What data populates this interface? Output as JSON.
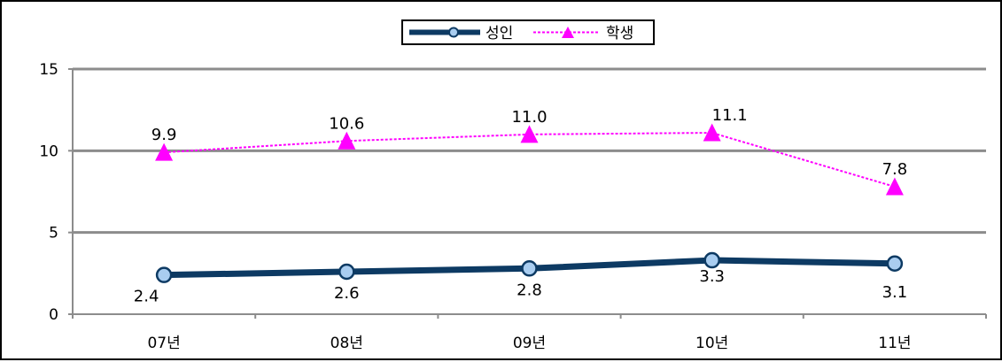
{
  "chart_data": {
    "type": "line",
    "categories": [
      "07년",
      "08년",
      "09년",
      "10년",
      "11년"
    ],
    "series": [
      {
        "name": "성인",
        "values": [
          2.4,
          2.6,
          2.8,
          3.3,
          3.1
        ],
        "labels": [
          "2.4",
          "2.6",
          "2.8",
          "3.3",
          "3.1"
        ],
        "color": "#0d3a63",
        "marker_color": "#a9cdf0",
        "line_style": "solid",
        "marker": "circle"
      },
      {
        "name": "학생",
        "values": [
          9.9,
          10.6,
          11.0,
          11.1,
          7.8
        ],
        "labels": [
          "9.9",
          "10.6",
          "11.0",
          "11.1",
          "7.8"
        ],
        "color": "#ff00ff",
        "marker_color": "#ff00ff",
        "line_style": "dashed",
        "marker": "triangle"
      }
    ],
    "ylim": [
      0,
      15
    ],
    "yticks": [
      "0",
      "5",
      "10",
      "15"
    ],
    "grid": true,
    "grid_color": "#8c8c8c",
    "legend_position": "top-center"
  }
}
